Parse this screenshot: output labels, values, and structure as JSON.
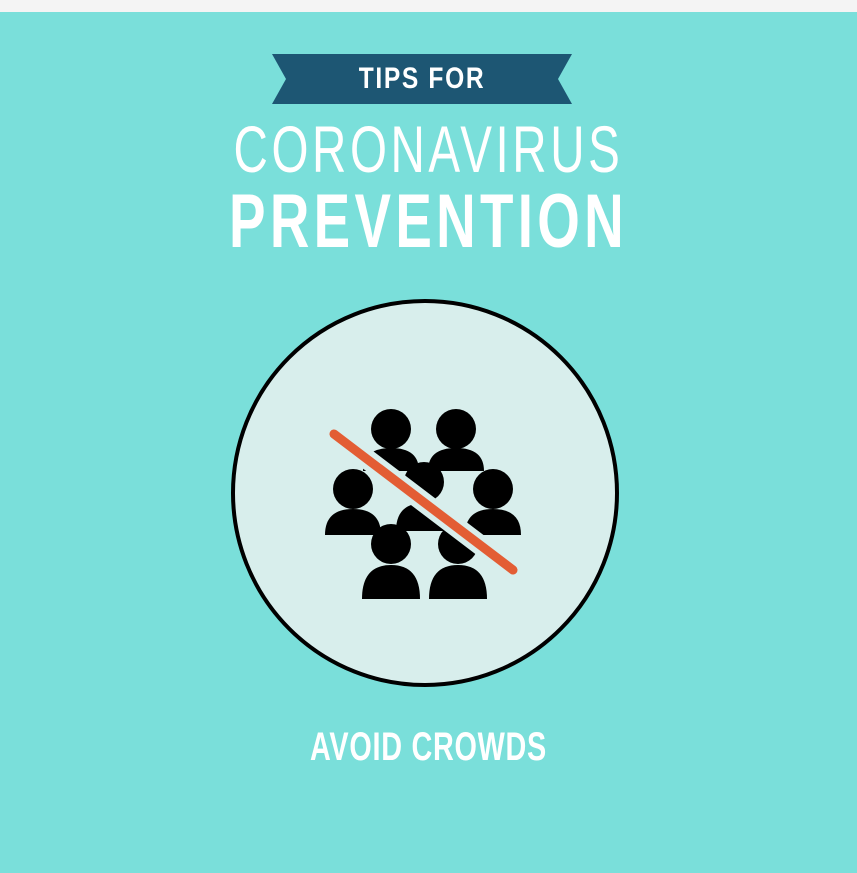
{
  "ribbon": {
    "label": "TIPS FOR"
  },
  "title": {
    "line1": "CORONAVIRUS",
    "line2": "PREVENTION"
  },
  "icon": {
    "name": "no-crowds-icon"
  },
  "caption": "AVOID CROWDS",
  "colors": {
    "background": "#7adfda",
    "ribbon": "#1d5673",
    "circle_fill": "#d8eeec",
    "people": "#000000",
    "strike": "#e35d34"
  }
}
